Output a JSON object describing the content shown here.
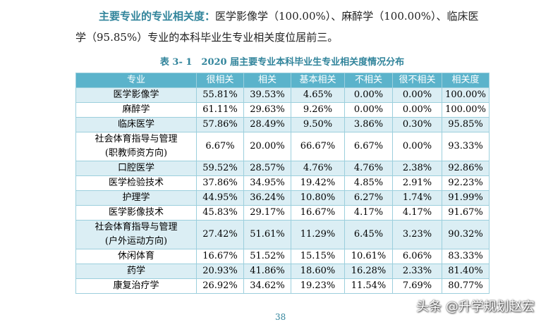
{
  "paragraph": {
    "lead": "主要专业的专业相关度：",
    "line1": "医学影像学（100.00%）、麻醉学（100.00%）、临床医",
    "line2": "学（95.85%）专业的本科毕业生专业相关度位居前三。"
  },
  "table": {
    "caption": "表 3- 1　2020 届主要专业本科毕业生专业相关度情况分布",
    "header": [
      "专业",
      "很相关",
      "相关",
      "基本相关",
      "不相关",
      "很不相关",
      "相关度"
    ],
    "rows": [
      [
        [
          "医学影像学"
        ],
        "55.81%",
        "39.53%",
        "4.65%",
        "0.00%",
        "0.00%",
        "100.00%"
      ],
      [
        [
          "麻醉学"
        ],
        "61.11%",
        "29.63%",
        "9.26%",
        "0.00%",
        "0.00%",
        "100.00%"
      ],
      [
        [
          "临床医学"
        ],
        "57.86%",
        "28.49%",
        "9.50%",
        "3.86%",
        "0.30%",
        "95.85%"
      ],
      [
        [
          "社会体育指导与管理",
          "(职教师资方向)"
        ],
        "6.67%",
        "20.00%",
        "66.67%",
        "6.67%",
        "0.00%",
        "93.33%"
      ],
      [
        [
          "口腔医学"
        ],
        "59.52%",
        "28.57%",
        "4.76%",
        "4.76%",
        "2.38%",
        "92.86%"
      ],
      [
        [
          "医学检验技术"
        ],
        "37.86%",
        "34.95%",
        "19.42%",
        "4.85%",
        "2.91%",
        "92.23%"
      ],
      [
        [
          "护理学"
        ],
        "44.95%",
        "36.24%",
        "10.80%",
        "6.27%",
        "1.74%",
        "91.99%"
      ],
      [
        [
          "医学影像技术"
        ],
        "45.83%",
        "29.17%",
        "16.67%",
        "4.17%",
        "4.17%",
        "91.67%"
      ],
      [
        [
          "社会体育指导与管理",
          "(户外运动方向)"
        ],
        "27.42%",
        "51.61%",
        "11.29%",
        "6.45%",
        "3.23%",
        "90.32%"
      ],
      [
        [
          "休闲体育"
        ],
        "16.67%",
        "51.52%",
        "15.15%",
        "10.61%",
        "6.06%",
        "83.33%"
      ],
      [
        [
          "药学"
        ],
        "20.93%",
        "41.86%",
        "18.60%",
        "16.28%",
        "2.33%",
        "81.40%"
      ],
      [
        [
          "康复治疗学"
        ],
        "26.92%",
        "34.62%",
        "19.23%",
        "11.54%",
        "7.69%",
        "80.77%"
      ]
    ]
  },
  "page_number": "38",
  "watermark": "头条 @升学规划赵宏"
}
